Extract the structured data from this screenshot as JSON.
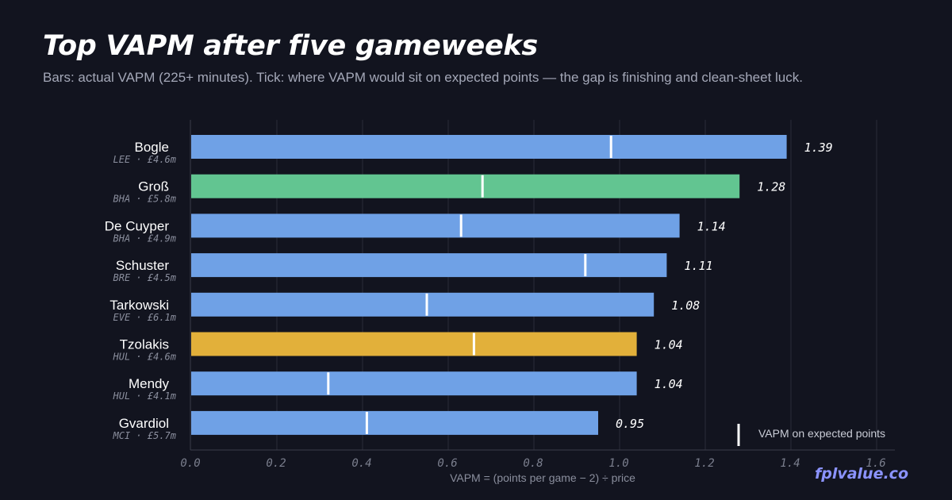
{
  "header": {
    "title": "Top VAPM after five gameweeks",
    "subtitle": "Bars: actual VAPM (225+ minutes). Tick: where VAPM would sit on expected points — the gap is finishing and clean-sheet luck."
  },
  "brand": "fplvalue.co",
  "colors": {
    "background": "#12141f",
    "default_bar": "#6fa1e6",
    "grid": "#2a2d3a",
    "tick": "#ffffff"
  },
  "chart_data": {
    "type": "bar",
    "orientation": "horizontal",
    "title": "Top VAPM after five gameweeks",
    "xlabel": "VAPM = (points per game − 2) ÷ price",
    "xlim": [
      0,
      1.6
    ],
    "xticks": [
      "0.0",
      "0.2",
      "0.4",
      "0.6",
      "0.8",
      "1.0",
      "1.2",
      "1.4",
      "1.6"
    ],
    "grid": true,
    "legend": {
      "label": "VAPM on expected points",
      "position": "bottom-right"
    },
    "players": [
      {
        "name": "Bogle",
        "meta": "LEE · £4.6m",
        "value": 1.39,
        "value_label": "1.39",
        "expected": 0.98,
        "color": "#6fa1e6"
      },
      {
        "name": "Groß",
        "meta": "BHA · £5.8m",
        "value": 1.28,
        "value_label": "1.28",
        "expected": 0.68,
        "color": "#62c591"
      },
      {
        "name": "De Cuyper",
        "meta": "BHA · £4.9m",
        "value": 1.14,
        "value_label": "1.14",
        "expected": 0.63,
        "color": "#6fa1e6"
      },
      {
        "name": "Schuster",
        "meta": "BRE · £4.5m",
        "value": 1.11,
        "value_label": "1.11",
        "expected": 0.92,
        "color": "#6fa1e6"
      },
      {
        "name": "Tarkowski",
        "meta": "EVE · £6.1m",
        "value": 1.08,
        "value_label": "1.08",
        "expected": 0.55,
        "color": "#6fa1e6"
      },
      {
        "name": "Tzolakis",
        "meta": "HUL · £4.6m",
        "value": 1.04,
        "value_label": "1.04",
        "expected": 0.66,
        "color": "#e2b03a"
      },
      {
        "name": "Mendy",
        "meta": "HUL · £4.1m",
        "value": 1.04,
        "value_label": "1.04",
        "expected": 0.32,
        "color": "#6fa1e6"
      },
      {
        "name": "Gvardiol",
        "meta": "MCI · £5.7m",
        "value": 0.95,
        "value_label": "0.95",
        "expected": 0.41,
        "color": "#6fa1e6"
      }
    ]
  }
}
